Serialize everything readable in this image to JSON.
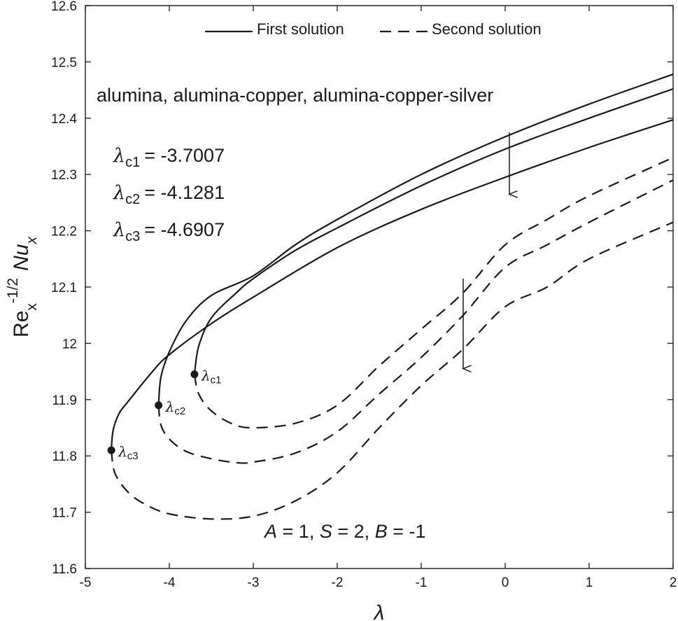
{
  "chart_data": {
    "type": "line",
    "xlabel": "λ",
    "ylabel": "Re_x^-1/2 Nu_x",
    "xlim": [
      -5,
      2
    ],
    "ylim": [
      11.6,
      12.6
    ],
    "xticks": [
      "-5",
      "-4",
      "-3",
      "-2",
      "-1",
      "0",
      "1",
      "2"
    ],
    "yticks": [
      "11.6",
      "11.7",
      "11.8",
      "11.9",
      "12",
      "12.1",
      "12.2",
      "12.3",
      "12.4",
      "12.5",
      "12.6"
    ],
    "grid": false,
    "legend": {
      "placement": "top",
      "entries": [
        {
          "label": "First solution",
          "style": "solid"
        },
        {
          "label": "Second solution",
          "style": "dashed"
        }
      ]
    },
    "annotations": {
      "materials": "alumina, alumina-copper, alumina-copper-silver",
      "critical_values": [
        {
          "symbol": "λ",
          "sub": "c1",
          "value": "= -3.7007"
        },
        {
          "symbol": "λ",
          "sub": "c2",
          "value": "= -4.1281"
        },
        {
          "symbol": "λ",
          "sub": "c3",
          "value": "= -4.6907"
        }
      ],
      "params": {
        "A": "1",
        "S": "2",
        "B": "-1"
      }
    },
    "critical_points": [
      {
        "label": "λ",
        "sub": "c1",
        "x": -3.7007,
        "y": 11.945
      },
      {
        "label": "λ",
        "sub": "c2",
        "x": -4.1281,
        "y": 11.89
      },
      {
        "label": "λ",
        "sub": "c3",
        "x": -4.6907,
        "y": 11.81
      }
    ],
    "series": [
      {
        "group": "first",
        "style": "solid",
        "x": [
          -3.7007,
          -3.65,
          -3.5,
          -3.2,
          -3,
          -2.5,
          -2,
          -1,
          0,
          1,
          2
        ],
        "y": [
          11.945,
          11.995,
          12.045,
          12.09,
          12.115,
          12.165,
          12.205,
          12.28,
          12.345,
          12.4,
          12.452
        ]
      },
      {
        "group": "first",
        "style": "solid",
        "x": [
          -4.1281,
          -4.1,
          -4,
          -3.8,
          -3.5,
          -3,
          -2.5,
          -2,
          -1,
          0,
          1,
          2
        ],
        "y": [
          11.89,
          11.94,
          11.985,
          12.04,
          12.085,
          12.12,
          12.175,
          12.22,
          12.3,
          12.367,
          12.425,
          12.478
        ]
      },
      {
        "group": "first",
        "style": "solid",
        "x": [
          -4.6907,
          -4.67,
          -4.6,
          -4.5,
          -4.2,
          -4,
          -3.5,
          -3,
          -2,
          -1,
          0,
          1,
          2
        ],
        "y": [
          11.81,
          11.845,
          11.875,
          11.895,
          11.95,
          11.98,
          12.035,
          12.082,
          12.17,
          12.238,
          12.295,
          12.348,
          12.397
        ]
      },
      {
        "group": "second",
        "style": "dashed",
        "x": [
          -3.7007,
          -3.65,
          -3.5,
          -3.25,
          -3,
          -2.5,
          -2,
          -1.5,
          -1,
          -0.5,
          0,
          0.5,
          1,
          2
        ],
        "y": [
          11.945,
          11.91,
          11.88,
          11.857,
          11.85,
          11.858,
          11.89,
          11.96,
          12.025,
          12.09,
          12.175,
          12.22,
          12.262,
          12.33
        ]
      },
      {
        "group": "second",
        "style": "dashed",
        "x": [
          -4.1281,
          -4.1,
          -4,
          -3.8,
          -3.5,
          -3.2,
          -3,
          -2.5,
          -2,
          -1.5,
          -1,
          -0.5,
          0,
          0.5,
          1,
          2
        ],
        "y": [
          11.89,
          11.855,
          11.83,
          11.808,
          11.795,
          11.788,
          11.789,
          11.805,
          11.843,
          11.91,
          11.975,
          12.05,
          12.135,
          12.175,
          12.215,
          12.29
        ]
      },
      {
        "group": "second",
        "style": "dashed",
        "x": [
          -4.6907,
          -4.65,
          -4.5,
          -4.3,
          -4,
          -3.5,
          -3,
          -2.5,
          -2,
          -1.5,
          -1,
          -0.5,
          0,
          0.5,
          1,
          2
        ],
        "y": [
          11.81,
          11.77,
          11.737,
          11.715,
          11.697,
          11.688,
          11.693,
          11.72,
          11.77,
          11.85,
          11.925,
          11.99,
          12.065,
          12.1,
          12.15,
          12.215
        ]
      }
    ],
    "arrows": [
      {
        "from": [
          0.05,
          12.375
        ],
        "to": [
          0.05,
          12.265
        ]
      },
      {
        "from": [
          -0.5,
          12.115
        ],
        "to": [
          -0.5,
          11.955
        ]
      }
    ]
  }
}
